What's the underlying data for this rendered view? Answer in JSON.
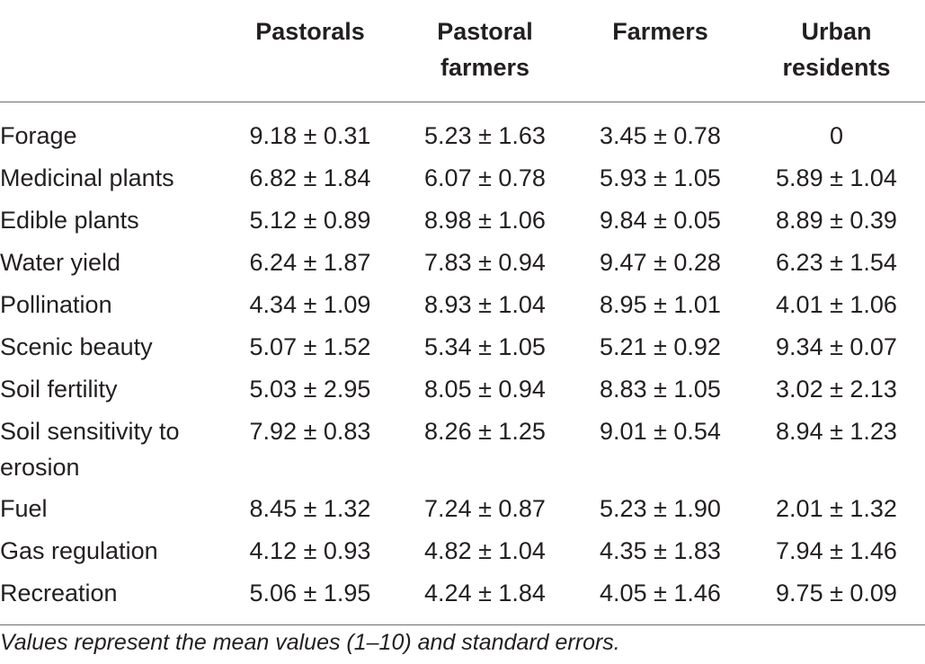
{
  "table": {
    "header": [
      "",
      "Pastorals",
      "Pastoral farmers",
      "Farmers",
      "Urban residents"
    ],
    "rows": [
      {
        "label": "Forage",
        "values": [
          "9.18 ± 0.31",
          "5.23 ± 1.63",
          "3.45 ± 0.78",
          "0"
        ]
      },
      {
        "label": "Medicinal plants",
        "values": [
          "6.82 ± 1.84",
          "6.07 ± 0.78",
          "5.93 ± 1.05",
          "5.89 ± 1.04"
        ]
      },
      {
        "label": "Edible plants",
        "values": [
          "5.12 ± 0.89",
          "8.98 ± 1.06",
          "9.84 ± 0.05",
          "8.89 ± 0.39"
        ]
      },
      {
        "label": "Water yield",
        "values": [
          "6.24 ± 1.87",
          "7.83 ± 0.94",
          "9.47 ± 0.28",
          "6.23 ± 1.54"
        ]
      },
      {
        "label": "Pollination",
        "values": [
          "4.34 ± 1.09",
          "8.93 ± 1.04",
          "8.95 ± 1.01",
          "4.01 ± 1.06"
        ]
      },
      {
        "label": "Scenic beauty",
        "values": [
          "5.07 ± 1.52",
          "5.34 ± 1.05",
          "5.21 ± 0.92",
          "9.34 ± 0.07"
        ]
      },
      {
        "label": "Soil fertility",
        "values": [
          "5.03 ± 2.95",
          "8.05 ± 0.94",
          "8.83 ± 1.05",
          "3.02 ± 2.13"
        ]
      },
      {
        "label": "Soil sensitivity to erosion",
        "values": [
          "7.92 ± 0.83",
          "8.26 ± 1.25",
          "9.01 ± 0.54",
          "8.94 ± 1.23"
        ]
      },
      {
        "label": "Fuel",
        "values": [
          "8.45 ± 1.32",
          "7.24 ± 0.87",
          "5.23 ± 1.90",
          "2.01 ± 1.32"
        ]
      },
      {
        "label": "Gas regulation",
        "values": [
          "4.12 ± 0.93",
          "4.82 ± 1.04",
          "4.35 ± 1.83",
          "7.94 ± 1.46"
        ]
      },
      {
        "label": "Recreation",
        "values": [
          "5.06 ± 1.95",
          "4.24 ± 1.84",
          "4.05 ± 1.46",
          "9.75 ± 0.09"
        ]
      }
    ]
  },
  "footnote": "Values represent the mean values (1–10) and standard errors.",
  "colors": {
    "text": "#231f20",
    "rule": "#6d6e71",
    "background": "#ffffff"
  }
}
